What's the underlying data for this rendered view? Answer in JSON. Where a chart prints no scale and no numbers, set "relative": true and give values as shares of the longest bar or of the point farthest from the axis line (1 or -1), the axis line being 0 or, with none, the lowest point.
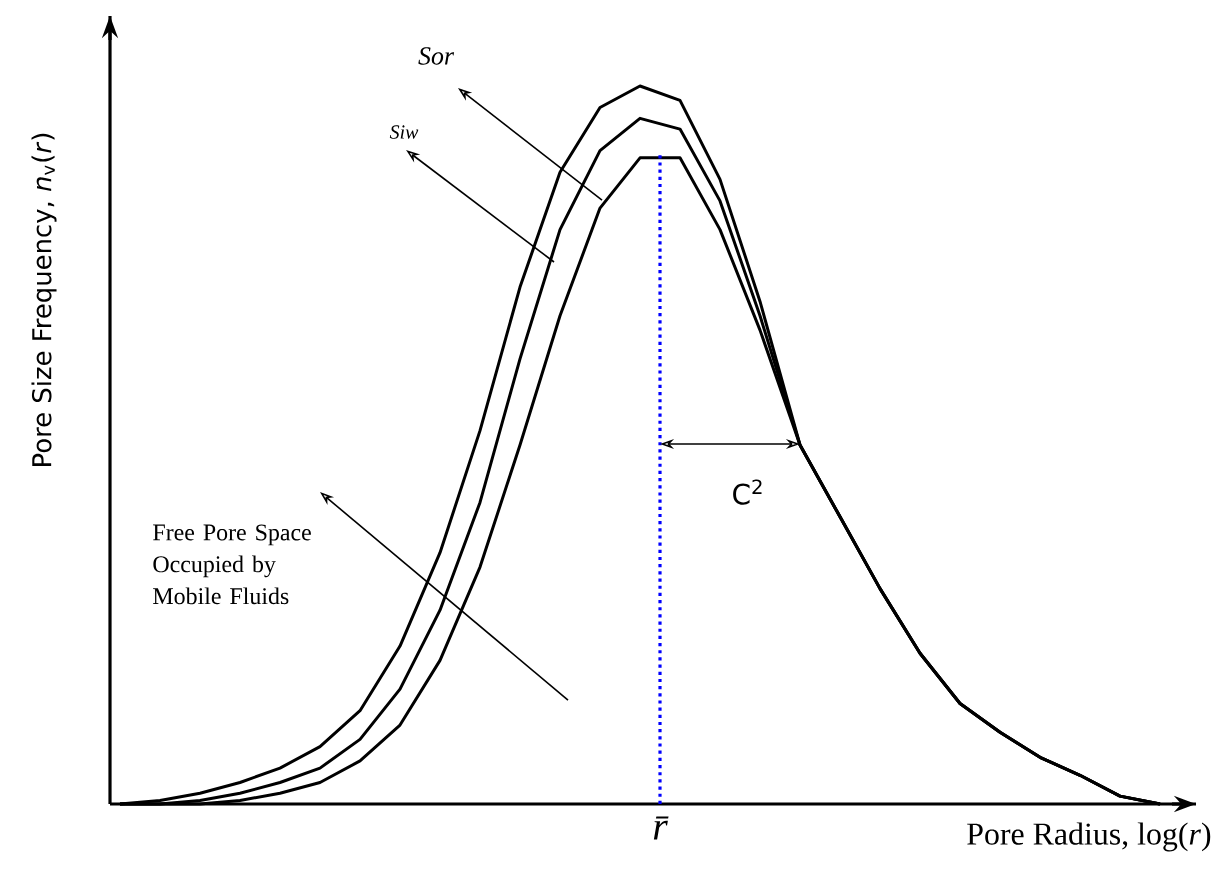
{
  "chart_data": {
    "type": "line",
    "relative": true,
    "xlabel": "Pore Radius, log(*r*)",
    "ylabel": "Pore Size Frequency,  *n*$_{v}$(*r*)",
    "categories": [
      null,
      null,
      null,
      null,
      null,
      null,
      null,
      null,
      null,
      null,
      null,
      null,
      null,
      null,
      null,
      null,
      null,
      null,
      null,
      null,
      null,
      null,
      null,
      null,
      null,
      null,
      null
    ],
    "series": [
      {
        "color": "#000000",
        "values": [
          0,
          0.005,
          0.015,
          0.03,
          0.05,
          0.08,
          0.13,
          0.22,
          0.35,
          0.52,
          0.72,
          0.88,
          0.97,
          1.0,
          0.98,
          0.87,
          0.7,
          0.5,
          0.4,
          0.3,
          0.21,
          0.14,
          0.1,
          0.065,
          0.04,
          0.011,
          0
        ]
      },
      {
        "color": "#000000",
        "values": [
          0,
          0,
          0.005,
          0.015,
          0.03,
          0.05,
          0.09,
          0.16,
          0.27,
          0.42,
          0.62,
          0.8,
          0.91,
          0.955,
          0.94,
          0.84,
          0.68,
          0.5,
          0.4,
          0.3,
          0.21,
          0.14,
          0.1,
          0.065,
          0.04,
          0.011,
          0
        ]
      },
      {
        "color": "#000000",
        "values": [
          0,
          0,
          0,
          0.005,
          0.015,
          0.03,
          0.06,
          0.11,
          0.2,
          0.33,
          0.5,
          0.68,
          0.83,
          0.9,
          0.9,
          0.8,
          0.66,
          0.5,
          0.4,
          0.3,
          0.21,
          0.14,
          0.1,
          0.065,
          0.04,
          0.011,
          0
        ]
      }
    ],
    "annotations": [
      "Sor",
      "Siw",
      "Free Pore Space Occupied by Mobile Fluids",
      "C$^{2}$",
      "r̄"
    ]
  }
}
